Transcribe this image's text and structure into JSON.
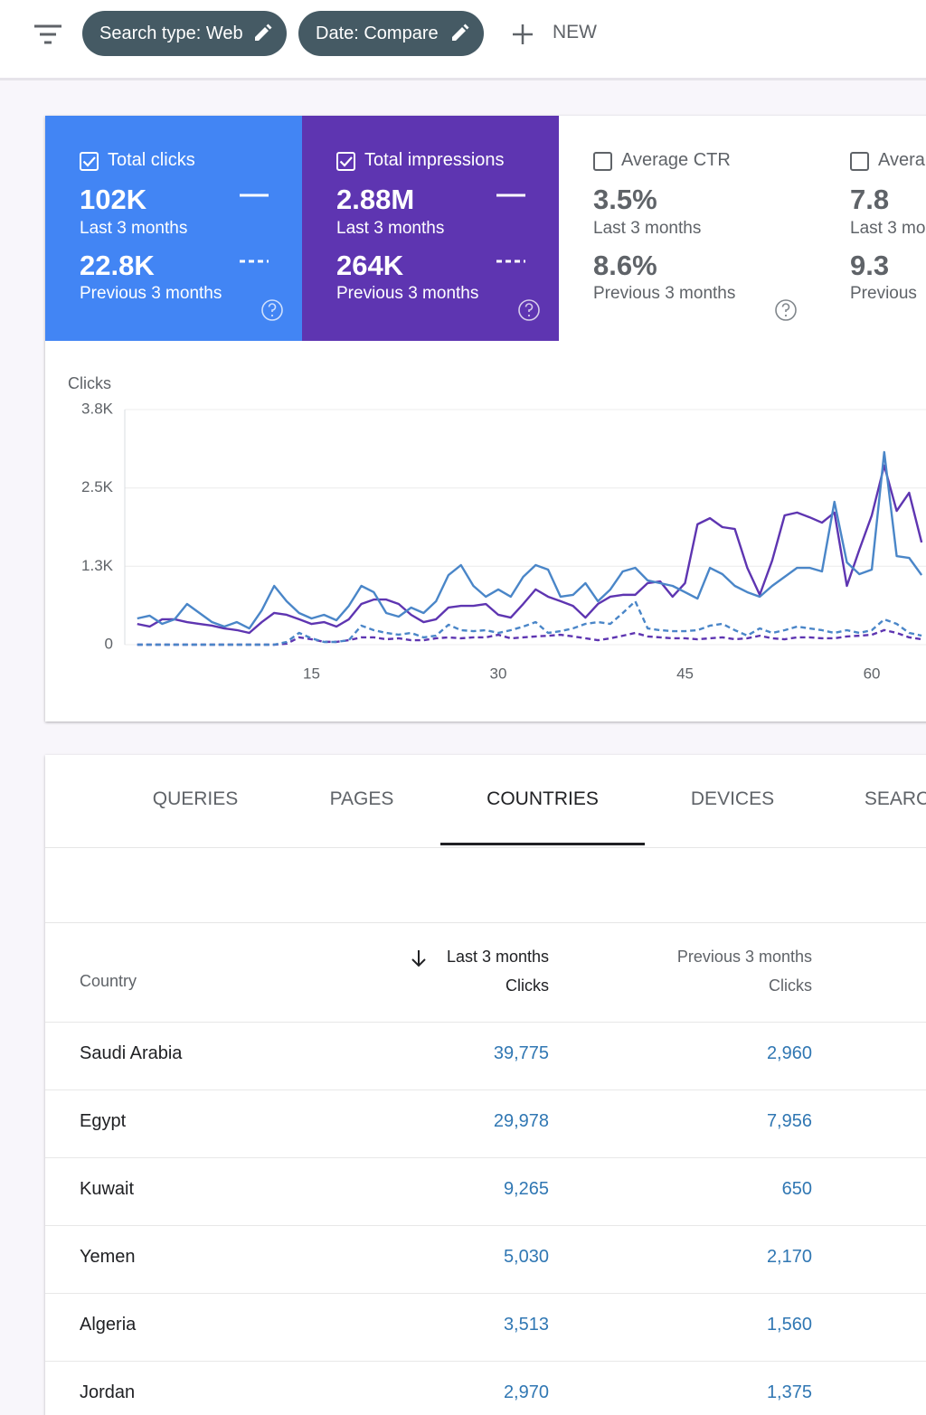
{
  "toolbar": {
    "filters": [
      "Search type: Web",
      "Date: Compare"
    ],
    "new_button": "NEW"
  },
  "metrics": [
    {
      "label": "Total clicks",
      "checked": true,
      "color": "#4285f4",
      "current_value": "102K",
      "current_period": "Last 3 months",
      "previous_value": "22.8K",
      "previous_period": "Previous 3 months"
    },
    {
      "label": "Total impressions",
      "checked": true,
      "color": "#5e35b1",
      "current_value": "2.88M",
      "current_period": "Last 3 months",
      "previous_value": "264K",
      "previous_period": "Previous 3 months"
    },
    {
      "label": "Average CTR",
      "checked": false,
      "current_value": "3.5%",
      "current_period": "Last 3 months",
      "previous_value": "8.6%",
      "previous_period": "Previous 3 months"
    },
    {
      "label": "Avera",
      "checked": false,
      "current_value": "7.8",
      "current_period": "Last 3 mo",
      "previous_value": "9.3",
      "previous_period": "Previous"
    }
  ],
  "chart_data": {
    "type": "line",
    "y_label": "Clicks",
    "x": [
      1,
      2,
      3,
      4,
      5,
      6,
      7,
      8,
      9,
      10,
      11,
      12,
      13,
      14,
      15,
      16,
      17,
      18,
      19,
      20,
      21,
      22,
      23,
      24,
      25,
      26,
      27,
      28,
      29,
      30,
      31,
      32,
      33,
      34,
      35,
      36,
      37,
      38,
      39,
      40,
      41,
      42,
      43,
      44,
      45,
      46,
      47,
      48,
      49,
      50,
      51,
      52,
      53,
      54,
      55,
      56,
      57,
      58,
      59,
      60,
      61,
      62,
      63,
      64
    ],
    "xlim": [
      0,
      64.5
    ],
    "xticks": [
      15,
      30,
      45,
      60
    ],
    "ylim": [
      0,
      3800
    ],
    "yticks": [
      0,
      {
        "value": 1267,
        "label": "1.3K"
      },
      {
        "value": 2533,
        "label": "2.5K"
      },
      {
        "value": 3800,
        "label": "3.8K"
      }
    ],
    "y2lim": [
      0,
      100000
    ],
    "grid": true,
    "series": [
      {
        "color": "#5e35b1",
        "axis": "y2",
        "dashed": false,
        "values": [
          8800,
          7700,
          10800,
          10800,
          9600,
          8800,
          8100,
          6900,
          6200,
          5000,
          9600,
          13500,
          12700,
          10800,
          8800,
          9600,
          7700,
          10800,
          17300,
          19200,
          19200,
          17300,
          12700,
          9600,
          10800,
          15800,
          16500,
          16500,
          17300,
          12700,
          11500,
          17300,
          23500,
          20400,
          18500,
          16500,
          11500,
          17300,
          20400,
          21200,
          21200,
          26200,
          26900,
          20400,
          26200,
          51200,
          53800,
          50000,
          49200,
          32700,
          21200,
          35800,
          55000,
          56200,
          54200,
          51900,
          56200,
          25000,
          40400,
          55000,
          76200,
          56900,
          64600,
          43500
        ]
      },
      {
        "color": "#4a86c8",
        "dashed": false,
        "values": [
          424,
          468,
          336,
          409,
          658,
          512,
          365,
          292,
          365,
          263,
          555,
          950,
          702,
          512,
          424,
          482,
          395,
          628,
          950,
          848,
          512,
          453,
          599,
          512,
          702,
          1125,
          1286,
          950,
          775,
          892,
          775,
          1096,
          1286,
          1213,
          775,
          804,
          994,
          702,
          892,
          1184,
          1242,
          1038,
          994,
          950,
          848,
          745,
          1242,
          1140,
          950,
          848,
          775,
          950,
          1096,
          1242,
          1242,
          1184,
          2309,
          1330,
          1140,
          1213,
          3113,
          1432,
          1403,
          1125
        ]
      },
      {
        "color": "#5e35b1",
        "axis": "y2",
        "dashed": true,
        "values": [
          0,
          0,
          0,
          0,
          0,
          0,
          0,
          0,
          0,
          0,
          0,
          0,
          400,
          3100,
          2300,
          1200,
          1200,
          1900,
          3100,
          3100,
          2300,
          2700,
          1900,
          1900,
          2700,
          3100,
          2700,
          3100,
          3100,
          4200,
          2700,
          3100,
          3500,
          3800,
          4200,
          3500,
          2700,
          1900,
          2700,
          3800,
          5000,
          3500,
          3100,
          2700,
          2700,
          2300,
          2700,
          3100,
          2300,
          2700,
          3800,
          2700,
          2300,
          3100,
          3100,
          2700,
          2700,
          3500,
          3800,
          4200,
          6200,
          5000,
          3100,
          2300
        ]
      },
      {
        "color": "#4a86c8",
        "dashed": true,
        "values": [
          0,
          0,
          0,
          0,
          0,
          0,
          0,
          0,
          0,
          0,
          0,
          0,
          44,
          190,
          102,
          44,
          44,
          73,
          307,
          234,
          190,
          161,
          190,
          117,
          146,
          322,
          234,
          219,
          234,
          190,
          234,
          292,
          365,
          190,
          219,
          263,
          336,
          365,
          336,
          512,
          702,
          263,
          234,
          219,
          219,
          234,
          307,
          336,
          234,
          146,
          263,
          190,
          234,
          292,
          263,
          234,
          190,
          234,
          190,
          234,
          409,
          336,
          190,
          146
        ]
      }
    ]
  },
  "tabs": {
    "items": [
      "QUERIES",
      "PAGES",
      "COUNTRIES",
      "DEVICES",
      "SEARC"
    ],
    "active": 2
  },
  "table": {
    "columns": [
      {
        "label": "Country"
      },
      {
        "period": "Last 3 months",
        "metric": "Clicks",
        "sorted": true
      },
      {
        "period": "Previous 3 months",
        "metric": "Clicks",
        "sorted": false
      }
    ],
    "rows": [
      [
        "Saudi Arabia",
        "39,775",
        "2,960"
      ],
      [
        "Egypt",
        "29,978",
        "7,956"
      ],
      [
        "Kuwait",
        "9,265",
        "650"
      ],
      [
        "Yemen",
        "5,030",
        "2,170"
      ],
      [
        "Algeria",
        "3,513",
        "1,560"
      ],
      [
        "Jordan",
        "2,970",
        "1,375"
      ]
    ]
  }
}
